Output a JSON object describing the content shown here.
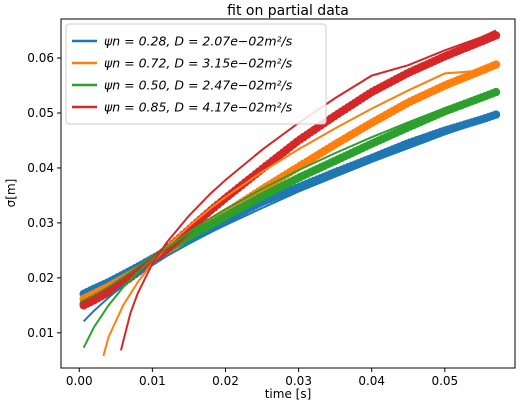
{
  "chart_data": {
    "type": "scatter",
    "title": "fit on partial data",
    "xlabel": "time [s]",
    "ylabel": "σ[m]",
    "xlim": [
      -0.0025,
      0.0596
    ],
    "ylim": [
      0.0036,
      0.0671
    ],
    "xticks": [
      0.0,
      0.01,
      0.02,
      0.03,
      0.04,
      0.05
    ],
    "xtick_labels": [
      "0.00",
      "0.01",
      "0.02",
      "0.03",
      "0.04",
      "0.05"
    ],
    "yticks": [
      0.01,
      0.02,
      0.03,
      0.04,
      0.05,
      0.06
    ],
    "ytick_labels": [
      "0.01",
      "0.02",
      "0.03",
      "0.04",
      "0.05",
      "0.06"
    ],
    "grid": false,
    "legend_position": "top-left",
    "series": [
      {
        "name": "ψn = 0.28, D = 2.07e−02m²/s",
        "color": "#1f77b4",
        "data": [
          [
            0.0006,
            0.0171
          ],
          [
            0.002,
            0.018
          ],
          [
            0.004,
            0.0192
          ],
          [
            0.006,
            0.0206
          ],
          [
            0.008,
            0.022
          ],
          [
            0.01,
            0.0235
          ],
          [
            0.012,
            0.025
          ],
          [
            0.015,
            0.0272
          ],
          [
            0.018,
            0.0292
          ],
          [
            0.02,
            0.0305
          ],
          [
            0.025,
            0.0338
          ],
          [
            0.03,
            0.0365
          ],
          [
            0.035,
            0.0392
          ],
          [
            0.04,
            0.0418
          ],
          [
            0.045,
            0.0445
          ],
          [
            0.05,
            0.0468
          ],
          [
            0.055,
            0.0488
          ],
          [
            0.057,
            0.0497
          ]
        ],
        "fit": [
          [
            0.0006,
            0.0121
          ],
          [
            0.002,
            0.014
          ],
          [
            0.004,
            0.0164
          ],
          [
            0.006,
            0.0186
          ],
          [
            0.008,
            0.0205
          ],
          [
            0.01,
            0.0223
          ],
          [
            0.012,
            0.024
          ],
          [
            0.015,
            0.0262
          ],
          [
            0.018,
            0.0283
          ],
          [
            0.02,
            0.0296
          ],
          [
            0.025,
            0.0327
          ],
          [
            0.03,
            0.0357
          ],
          [
            0.035,
            0.0384
          ],
          [
            0.04,
            0.0411
          ],
          [
            0.045,
            0.0436
          ],
          [
            0.05,
            0.0461
          ],
          [
            0.055,
            0.0484
          ],
          [
            0.057,
            0.0494
          ]
        ]
      },
      {
        "name": "ψn = 0.72, D = 3.15e−02m²/s",
        "color": "#ff7f0e",
        "data": [
          [
            0.0006,
            0.0162
          ],
          [
            0.002,
            0.0171
          ],
          [
            0.004,
            0.0184
          ],
          [
            0.006,
            0.0199
          ],
          [
            0.008,
            0.0214
          ],
          [
            0.01,
            0.023
          ],
          [
            0.012,
            0.0248
          ],
          [
            0.015,
            0.0276
          ],
          [
            0.018,
            0.0301
          ],
          [
            0.02,
            0.0318
          ],
          [
            0.025,
            0.0361
          ],
          [
            0.03,
            0.0402
          ],
          [
            0.035,
            0.0443
          ],
          [
            0.04,
            0.0482
          ],
          [
            0.045,
            0.0519
          ],
          [
            0.05,
            0.055
          ],
          [
            0.055,
            0.0577
          ],
          [
            0.057,
            0.0588
          ]
        ],
        "fit": [
          [
            0.0033,
            0.0058
          ],
          [
            0.004,
            0.0092
          ],
          [
            0.006,
            0.015
          ],
          [
            0.008,
            0.0192
          ],
          [
            0.01,
            0.0227
          ],
          [
            0.012,
            0.0257
          ],
          [
            0.015,
            0.0294
          ],
          [
            0.018,
            0.0327
          ],
          [
            0.02,
            0.0347
          ],
          [
            0.025,
            0.0393
          ],
          [
            0.03,
            0.0434
          ],
          [
            0.035,
            0.0472
          ],
          [
            0.04,
            0.0508
          ],
          [
            0.045,
            0.0541
          ],
          [
            0.05,
            0.0572
          ],
          [
            0.055,
            0.0577
          ],
          [
            0.057,
            0.059
          ]
        ]
      },
      {
        "name": "ψn = 0.50, D = 2.47e−02m²/s",
        "color": "#2ca02c",
        "data": [
          [
            0.0006,
            0.0153
          ],
          [
            0.002,
            0.0162
          ],
          [
            0.004,
            0.0177
          ],
          [
            0.006,
            0.0195
          ],
          [
            0.008,
            0.0213
          ],
          [
            0.01,
            0.0233
          ],
          [
            0.012,
            0.0252
          ],
          [
            0.015,
            0.0275
          ],
          [
            0.018,
            0.0297
          ],
          [
            0.02,
            0.0312
          ],
          [
            0.025,
            0.0348
          ],
          [
            0.03,
            0.0382
          ],
          [
            0.035,
            0.0413
          ],
          [
            0.04,
            0.0444
          ],
          [
            0.045,
            0.0474
          ],
          [
            0.05,
            0.0503
          ],
          [
            0.055,
            0.0528
          ],
          [
            0.057,
            0.0538
          ]
        ],
        "fit": [
          [
            0.0006,
            0.0073
          ],
          [
            0.002,
            0.011
          ],
          [
            0.004,
            0.015
          ],
          [
            0.006,
            0.0183
          ],
          [
            0.008,
            0.021
          ],
          [
            0.01,
            0.0234
          ],
          [
            0.012,
            0.0255
          ],
          [
            0.015,
            0.0283
          ],
          [
            0.018,
            0.0309
          ],
          [
            0.02,
            0.0325
          ],
          [
            0.025,
            0.0362
          ],
          [
            0.03,
            0.0396
          ],
          [
            0.035,
            0.0427
          ],
          [
            0.04,
            0.0456
          ],
          [
            0.045,
            0.0483
          ],
          [
            0.05,
            0.0509
          ],
          [
            0.055,
            0.0532
          ],
          [
            0.057,
            0.0542
          ]
        ]
      },
      {
        "name": "ψn = 0.85, D = 4.17e−02m²/s",
        "color": "#d62728",
        "data": [
          [
            0.0006,
            0.015
          ],
          [
            0.002,
            0.0159
          ],
          [
            0.004,
            0.0174
          ],
          [
            0.006,
            0.0191
          ],
          [
            0.008,
            0.021
          ],
          [
            0.01,
            0.023
          ],
          [
            0.012,
            0.0252
          ],
          [
            0.015,
            0.0288
          ],
          [
            0.018,
            0.0323
          ],
          [
            0.02,
            0.0345
          ],
          [
            0.025,
            0.0398
          ],
          [
            0.03,
            0.045
          ],
          [
            0.035,
            0.0495
          ],
          [
            0.04,
            0.0538
          ],
          [
            0.045,
            0.0573
          ],
          [
            0.05,
            0.0603
          ],
          [
            0.055,
            0.063
          ],
          [
            0.057,
            0.0641
          ]
        ],
        "fit": [
          [
            0.0057,
            0.0068
          ],
          [
            0.007,
            0.0136
          ],
          [
            0.008,
            0.0172
          ],
          [
            0.01,
            0.0226
          ],
          [
            0.012,
            0.0265
          ],
          [
            0.015,
            0.0313
          ],
          [
            0.018,
            0.0354
          ],
          [
            0.02,
            0.0378
          ],
          [
            0.025,
            0.0433
          ],
          [
            0.03,
            0.0482
          ],
          [
            0.035,
            0.0527
          ],
          [
            0.04,
            0.0568
          ],
          [
            0.045,
            0.0587
          ],
          [
            0.05,
            0.0614
          ],
          [
            0.055,
            0.0638
          ],
          [
            0.057,
            0.065
          ]
        ]
      }
    ]
  }
}
